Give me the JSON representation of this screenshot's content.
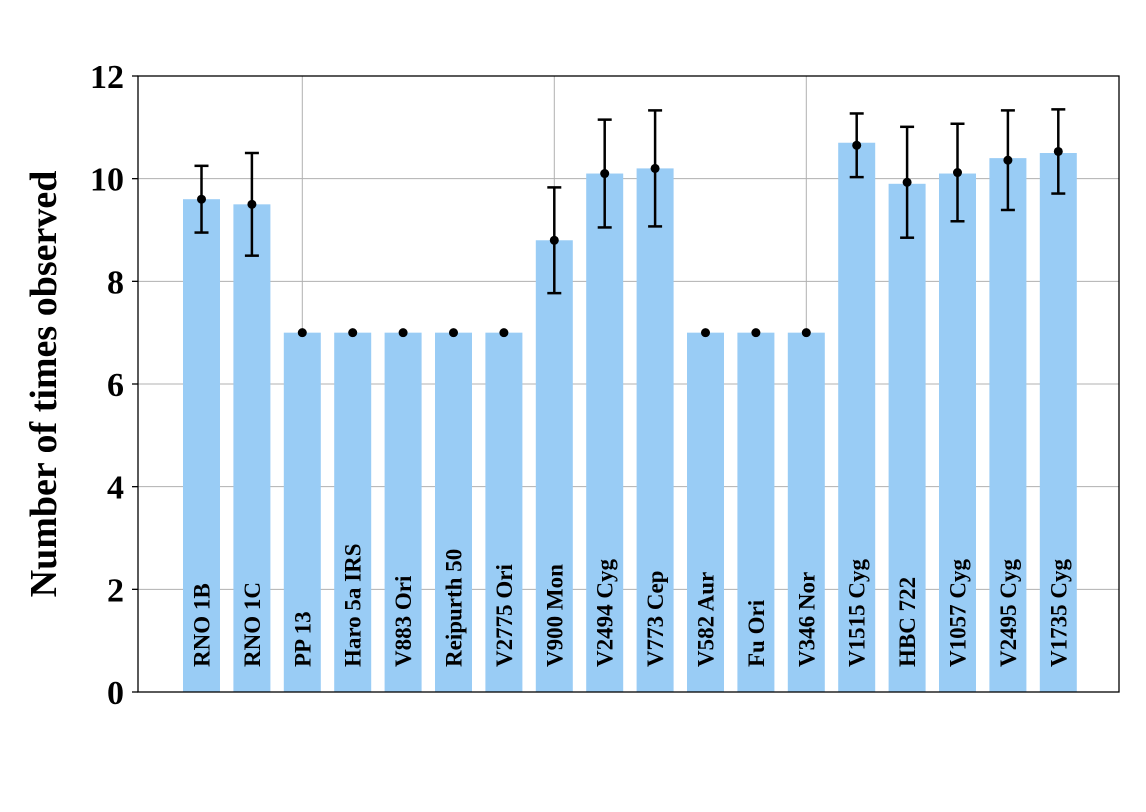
{
  "chart_data": {
    "type": "bar",
    "xlabel": "",
    "ylabel": "Number of times observed",
    "ylim": [
      0,
      12
    ],
    "yticks": [
      0,
      2,
      4,
      6,
      8,
      10,
      12
    ],
    "grid": true,
    "bar_color": "#99ccf5",
    "error_color": "#000000",
    "categories": [
      "RNO 1B",
      "RNO 1C",
      "PP 13",
      "Haro 5a IRS",
      "V883 Ori",
      "Reipurth 50",
      "V2775 Ori",
      "V900 Mon",
      "V2494 Cyg",
      "V773 Cep",
      "V582 Aur",
      "Fu Ori",
      "V346 Nor",
      "V1515 Cyg",
      "HBC 722",
      "V1057 Cyg",
      "V2495 Cyg",
      "V1735 Cyg"
    ],
    "values": [
      9.6,
      9.5,
      7.0,
      7.0,
      7.0,
      7.0,
      7.0,
      8.8,
      10.1,
      10.2,
      7.0,
      7.0,
      7.0,
      10.7,
      9.9,
      10.1,
      10.4,
      10.5
    ],
    "points": [
      9.6,
      9.5,
      7.0,
      7.0,
      7.0,
      7.0,
      7.0,
      8.8,
      10.1,
      10.2,
      7.0,
      7.0,
      7.0,
      10.65,
      9.93,
      10.12,
      10.36,
      10.53
    ],
    "errors": [
      0.65,
      1.0,
      0,
      0,
      0,
      0,
      0,
      1.03,
      1.05,
      1.13,
      0,
      0,
      0,
      0.62,
      1.08,
      0.95,
      0.97,
      0.82
    ]
  }
}
